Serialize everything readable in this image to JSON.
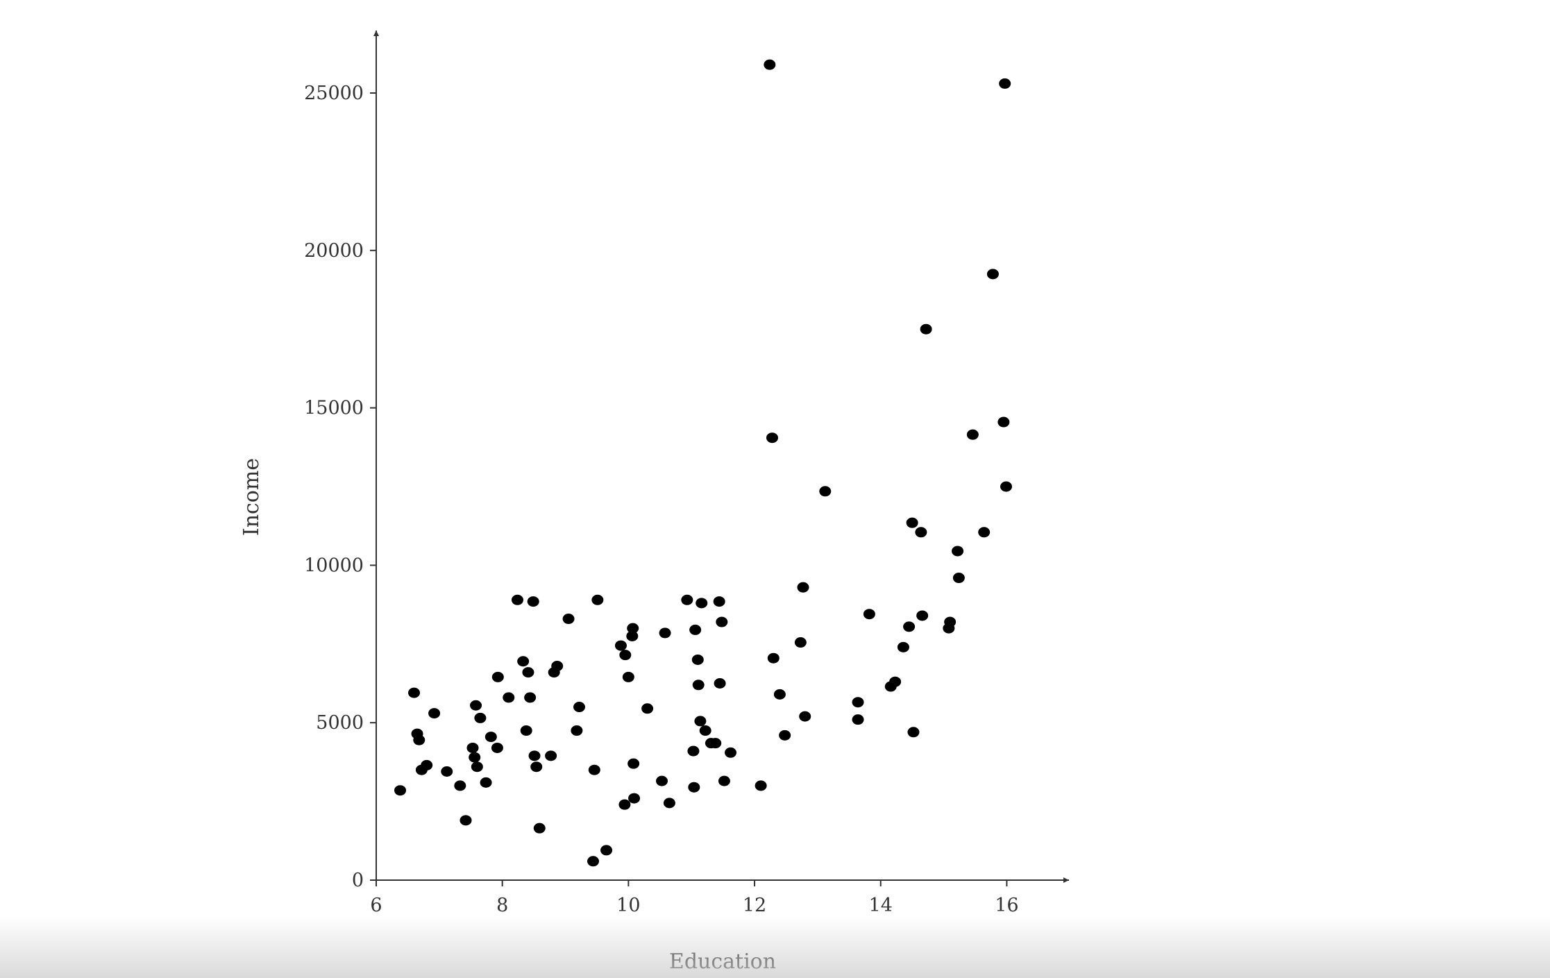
{
  "chart_data": {
    "type": "scatter",
    "title": "",
    "xlabel": "Education",
    "ylabel": "Income",
    "xlim": [
      6,
      17
    ],
    "ylim": [
      0,
      27000
    ],
    "xticks": [
      "6",
      "8",
      "10",
      "12",
      "14",
      "16"
    ],
    "yticks": [
      "0",
      "5000",
      "10000",
      "15000",
      "20000",
      "25000"
    ],
    "grid": false,
    "legend": "none",
    "marker_color": "#000000",
    "series": [
      {
        "x": [
          6.38,
          6.6,
          6.65,
          6.68,
          6.72,
          6.8,
          6.92,
          7.12,
          7.33,
          7.42,
          7.53,
          7.56,
          7.58,
          7.6,
          7.65,
          7.74,
          7.82,
          7.92,
          7.93,
          8.1,
          8.24,
          8.33,
          8.38,
          8.41,
          8.44,
          8.49,
          8.51,
          8.54,
          8.59,
          8.77,
          8.82,
          8.87,
          9.05,
          9.18,
          9.22,
          9.44,
          9.46,
          9.51,
          9.65,
          9.88,
          9.94,
          9.95,
          10.0,
          10.06,
          10.07,
          10.08,
          10.09,
          10.3,
          10.53,
          10.58,
          10.65,
          10.93,
          11.03,
          11.04,
          11.06,
          11.1,
          11.11,
          11.14,
          11.16,
          11.22,
          11.31,
          11.38,
          11.44,
          11.45,
          11.48,
          11.52,
          11.62,
          12.1,
          12.24,
          12.28,
          12.3,
          12.4,
          12.48,
          12.73,
          12.77,
          12.8,
          13.12,
          13.64,
          13.64,
          13.82,
          14.16,
          14.23,
          14.36,
          14.45,
          14.5,
          14.52,
          14.64,
          14.66,
          14.72,
          15.08,
          15.1,
          15.22,
          15.24,
          15.46,
          15.64,
          15.78,
          15.95,
          15.97,
          15.99
        ],
        "y": [
          2850,
          5950,
          4650,
          4450,
          3500,
          3650,
          5300,
          3450,
          3000,
          1900,
          4200,
          3900,
          5550,
          3600,
          5150,
          3100,
          4550,
          4200,
          6450,
          5800,
          8900,
          6950,
          4750,
          6600,
          5800,
          8850,
          3950,
          3600,
          1650,
          3950,
          6600,
          6800,
          8300,
          4750,
          5500,
          600,
          3500,
          8900,
          950,
          7450,
          2400,
          7150,
          6450,
          7750,
          8000,
          3700,
          2600,
          5450,
          3150,
          7850,
          2450,
          8900,
          4100,
          2950,
          7950,
          7000,
          6200,
          5050,
          8800,
          4750,
          4350,
          4350,
          8850,
          6250,
          8200,
          3150,
          4050,
          3000,
          25900,
          14050,
          7050,
          5900,
          4600,
          7550,
          9300,
          5200,
          12350,
          5650,
          5100,
          8450,
          6150,
          6300,
          7400,
          8050,
          11350,
          4700,
          11050,
          8400,
          17500,
          8000,
          8200,
          10450,
          9600,
          14150,
          11050,
          19250,
          14550,
          25300,
          12500
        ]
      }
    ]
  }
}
